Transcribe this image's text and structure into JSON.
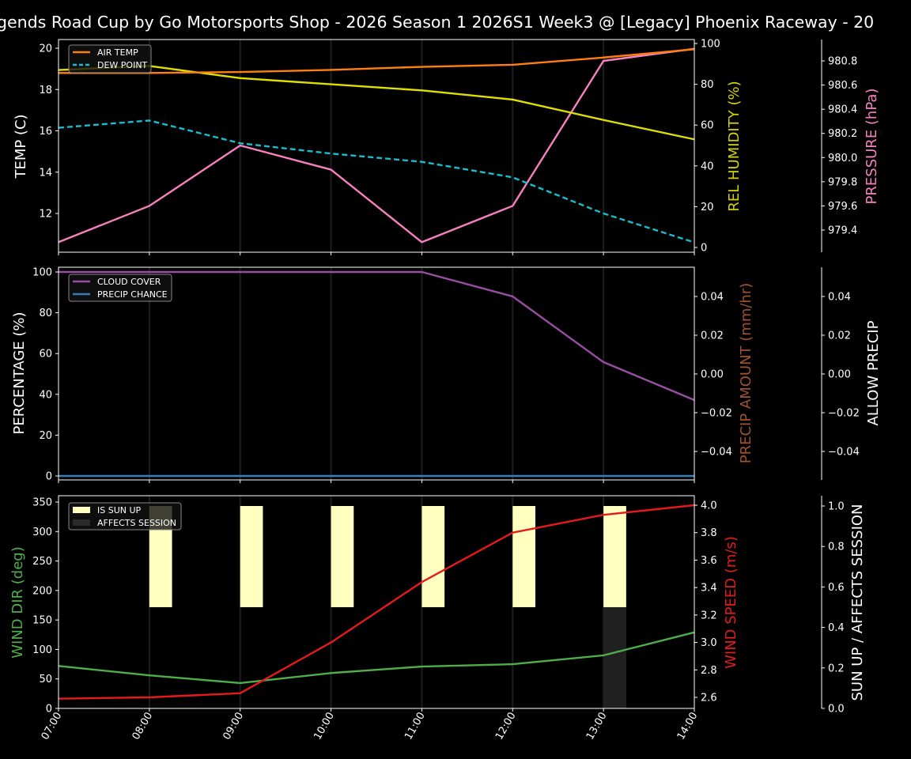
{
  "title": "gends Road Cup by Go Motorsports Shop - 2026 Season 1 2026S1 Week3 @ [Legacy] Phoenix Raceway - 20",
  "chart_data": [
    {
      "type": "line",
      "x": [
        "07:00",
        "08:00",
        "09:00",
        "10:00",
        "11:00",
        "12:00",
        "13:00",
        "14:00"
      ],
      "ylabel": "TEMP (C)",
      "y2label": "REL HUMIDITY (%)",
      "y3label": "PRESSURE (hPa)",
      "yticks": [
        "12",
        "14",
        "16",
        "18",
        "20"
      ],
      "y2ticks": [
        "0",
        "20",
        "40",
        "60",
        "80",
        "100"
      ],
      "y3ticks": [
        "979.4",
        "979.6",
        "979.8",
        "980.0",
        "980.2",
        "980.4",
        "980.6",
        "980.8"
      ],
      "legend_placement": "upper-left",
      "series": [
        {
          "name": "AIR TEMP",
          "axis": "left",
          "color": "#ff7f0e",
          "style": "solid",
          "values": [
            18.8,
            18.8,
            18.85,
            18.95,
            19.1,
            19.2,
            19.55,
            19.95
          ]
        },
        {
          "name": "DEW POINT",
          "axis": "left",
          "color": "#17becf",
          "style": "dashed",
          "values": [
            16.15,
            16.5,
            15.4,
            14.9,
            14.5,
            13.75,
            12.0,
            10.6
          ]
        },
        {
          "axis": "right",
          "color": "#e0e000",
          "style": "solid",
          "values": [
            87,
            89,
            83,
            80,
            77,
            72.5,
            62.5,
            53
          ]
        },
        {
          "axis": "right2",
          "color": "#f781bf",
          "style": "solid",
          "values": [
            979.3,
            979.6,
            980.1,
            979.9,
            979.3,
            979.6,
            980.8,
            980.9
          ]
        }
      ],
      "colors": {
        "humidity_label": "#d4d400",
        "pressure_label": "#f781bf"
      }
    },
    {
      "type": "line",
      "x": [
        "07:00",
        "08:00",
        "09:00",
        "10:00",
        "11:00",
        "12:00",
        "13:00",
        "14:00"
      ],
      "ylabel": "PERCENTAGE (%)",
      "y2label": "PRECIP AMOUNT (mm/hr)",
      "y3label": "ALLOW PRECIP",
      "yticks": [
        "0",
        "20",
        "40",
        "60",
        "80",
        "100"
      ],
      "y2ticks": [
        "−0.04",
        "−0.02",
        "0.00",
        "0.02",
        "0.04"
      ],
      "y3ticks": [
        "−0.04",
        "−0.02",
        "0.00",
        "0.02",
        "0.04"
      ],
      "legend_placement": "upper-left",
      "series": [
        {
          "name": "CLOUD COVER",
          "color": "#984ea3",
          "values": [
            100,
            100,
            100,
            100,
            100,
            88,
            55.8,
            37.2
          ]
        },
        {
          "name": "PRECIP CHANCE",
          "color": "#377eb8",
          "values": [
            0,
            0,
            0,
            0,
            0,
            0,
            0,
            0
          ]
        }
      ],
      "colors": {
        "precip_amount_label": "#a0522d"
      }
    },
    {
      "type": "line+bar",
      "x": [
        "07:00",
        "08:00",
        "09:00",
        "10:00",
        "11:00",
        "12:00",
        "13:00",
        "14:00"
      ],
      "ylabel": "WIND DIR (deg)",
      "y2label": "WIND SPEED (m/s)",
      "y3label": "SUN UP / AFFECTS SESSION",
      "yticks": [
        "0",
        "50",
        "100",
        "150",
        "200",
        "250",
        "300",
        "350"
      ],
      "y2ticks": [
        "2.6",
        "2.8",
        "3.0",
        "3.2",
        "3.4",
        "3.6",
        "3.8",
        "4.0"
      ],
      "y3ticks": [
        "0.0",
        "0.2",
        "0.4",
        "0.6",
        "0.8",
        "1.0"
      ],
      "legend_placement": "upper-left",
      "series": [
        {
          "name": "WIND DIR",
          "color": "#4daf4a",
          "values": [
            72,
            56,
            43,
            60,
            71,
            75,
            90,
            129
          ]
        },
        {
          "name": "WIND SPEED",
          "color": "#e41a1c",
          "values": [
            2.59,
            2.6,
            2.63,
            3.0,
            3.44,
            3.8,
            3.93,
            4.0
          ]
        }
      ],
      "bars": [
        {
          "name": "IS SUN UP",
          "color": "#ffffc0",
          "values": [
            0,
            1,
            1,
            1,
            1,
            1,
            1,
            0
          ]
        },
        {
          "name": "AFFECTS SESSION",
          "color": "#333333",
          "values": [
            0,
            0,
            0,
            0,
            0,
            0,
            1,
            0
          ]
        }
      ],
      "colors": {
        "wind_dir_label": "#4daf4a",
        "wind_speed_label": "#e41a1c"
      }
    }
  ]
}
